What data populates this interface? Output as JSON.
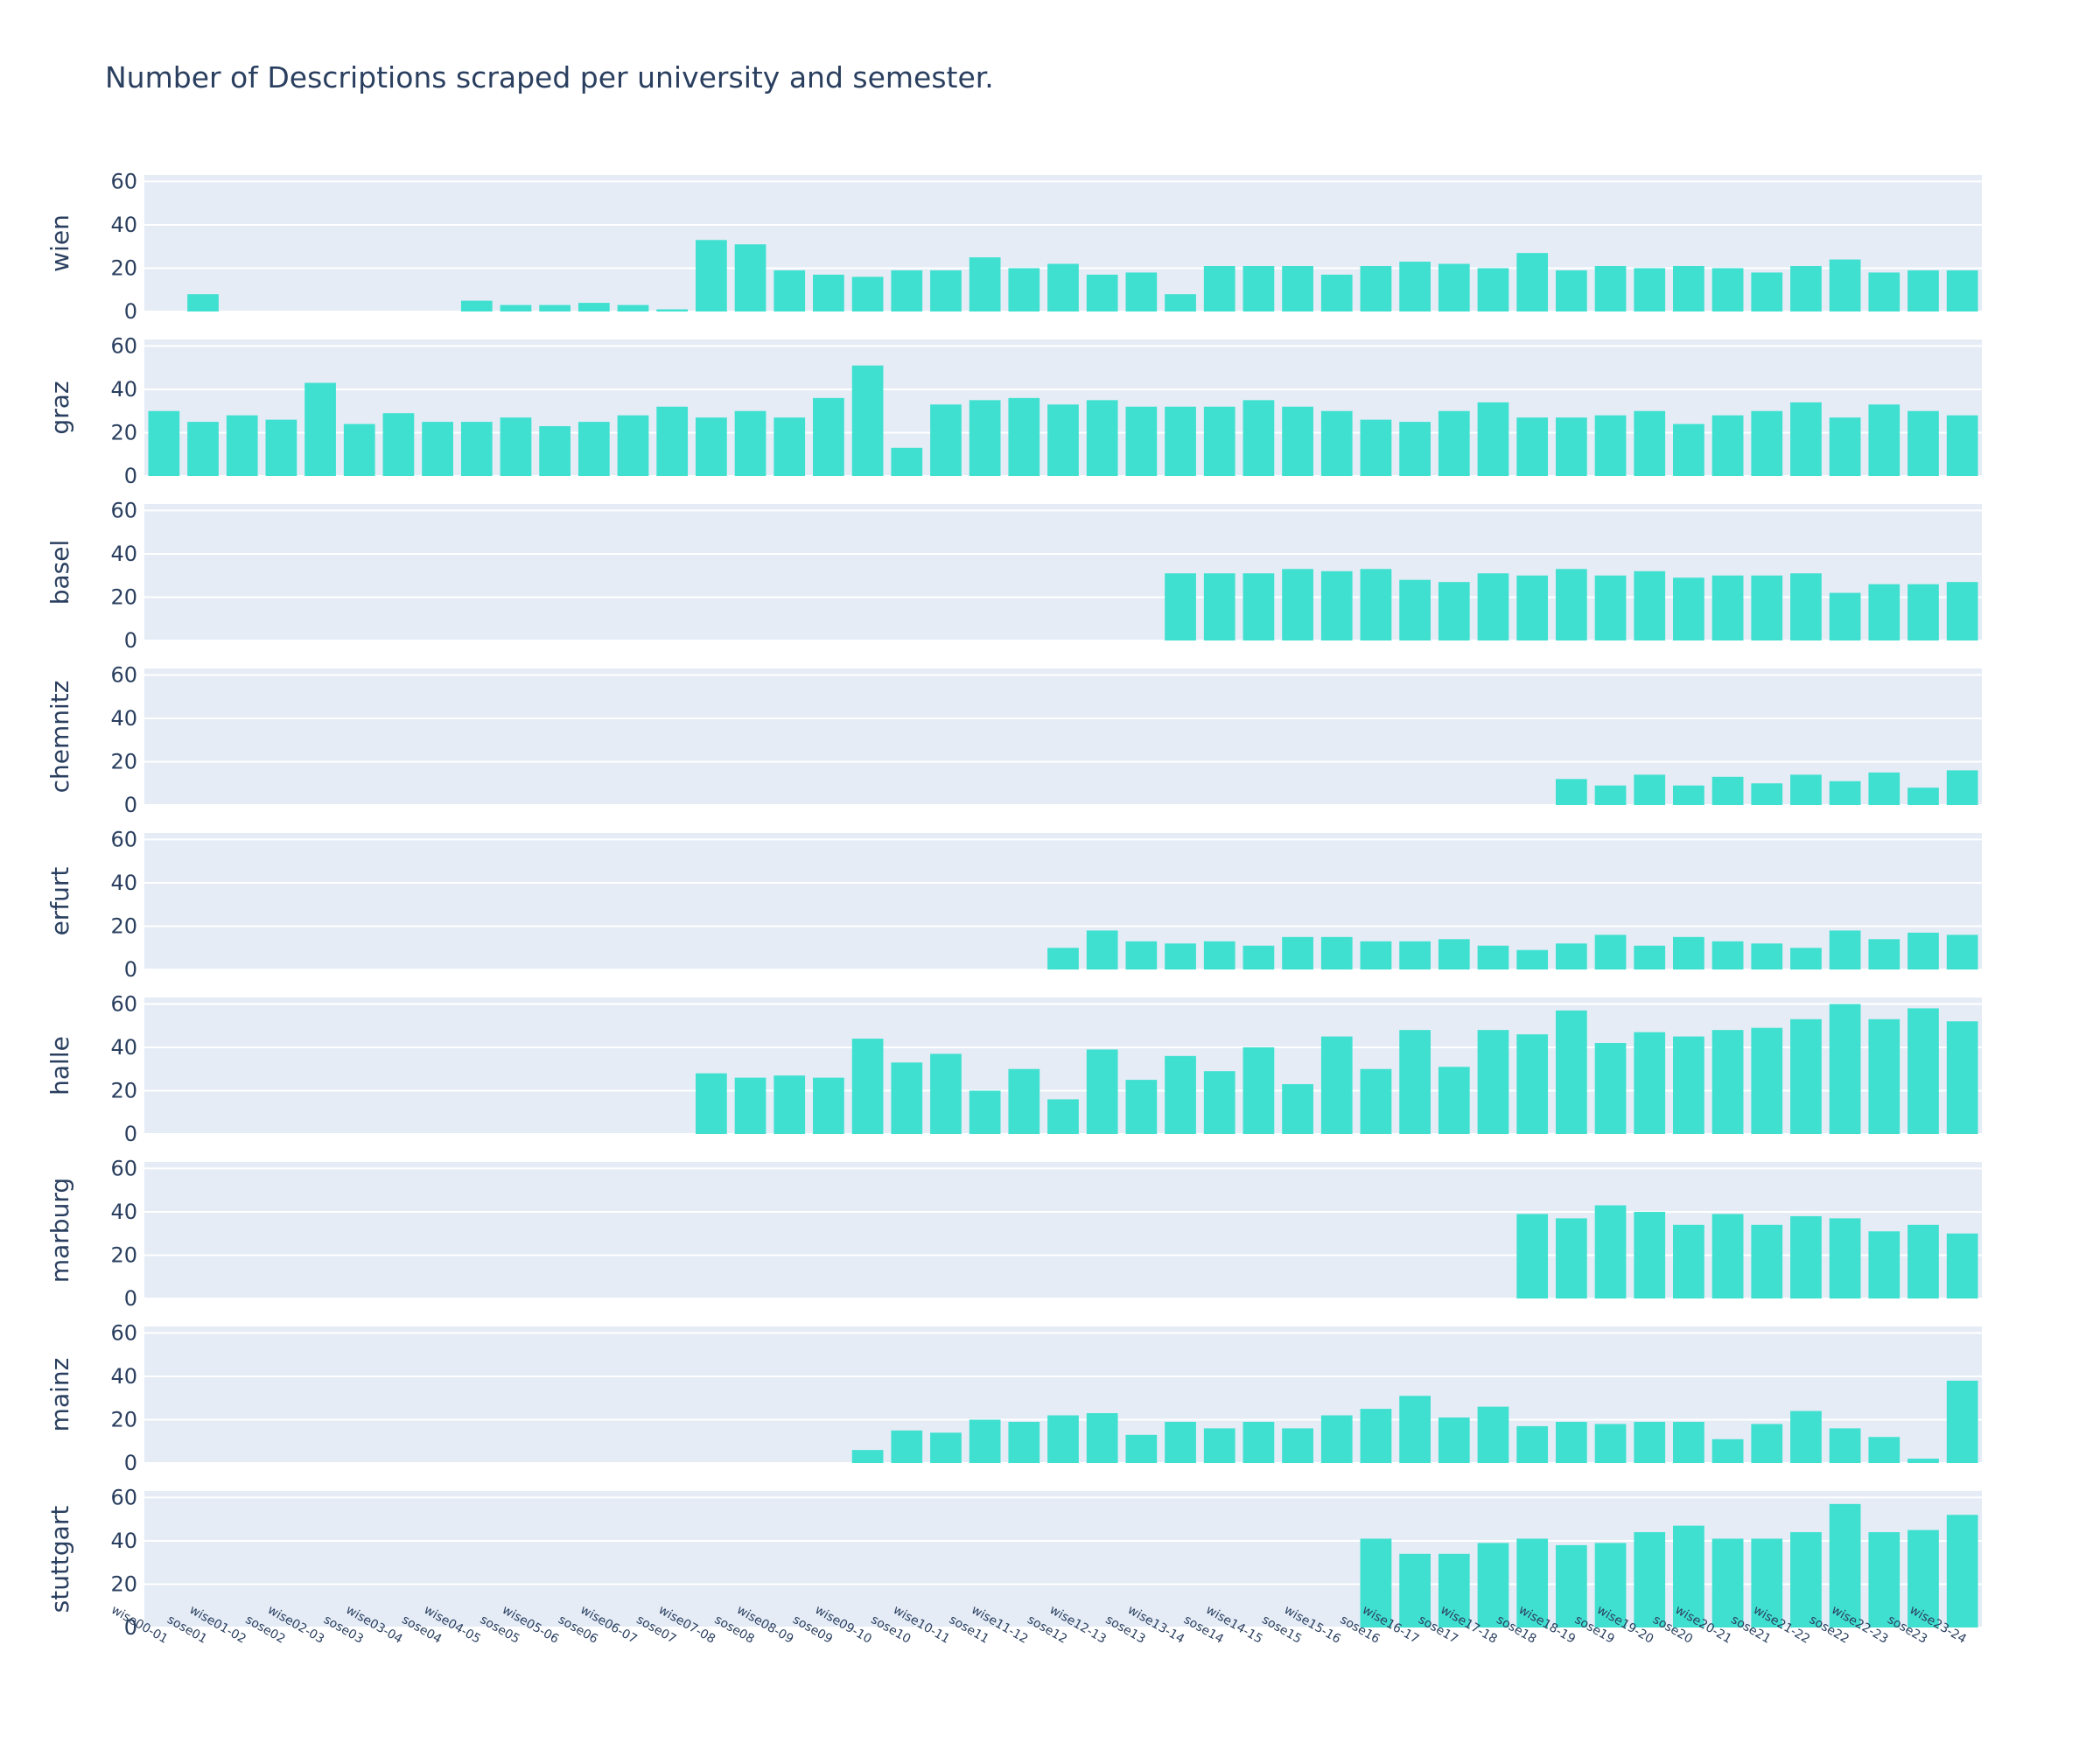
{
  "chart_data": {
    "type": "bar",
    "title": "Number of Descriptions scraped per university and semester.",
    "bar_color": "#40e0d0",
    "plot_bg": "#e5ecf6",
    "grid_color": "#ffffff",
    "text_color": "#2a3f5f",
    "ylim": [
      0,
      63
    ],
    "yticks": [
      0,
      20,
      40,
      60
    ],
    "categories": [
      "wise00-01",
      "sose01",
      "wise01-02",
      "sose02",
      "wise02-03",
      "sose03",
      "wise03-04",
      "sose04",
      "wise04-05",
      "sose05",
      "wise05-06",
      "sose06",
      "wise06-07",
      "sose07",
      "wise07-08",
      "sose08",
      "wise08-09",
      "sose09",
      "wise09-10",
      "sose10",
      "wise10-11",
      "sose11",
      "wise11-12",
      "sose12",
      "wise12-13",
      "sose13",
      "wise13-14",
      "sose14",
      "wise14-15",
      "sose15",
      "wise15-16",
      "sose16",
      "wise16-17",
      "sose17",
      "wise17-18",
      "sose18",
      "wise18-19",
      "sose19",
      "wise19-20",
      "sose20",
      "wise20-21",
      "sose21",
      "wise21-22",
      "sose22",
      "wise22-23",
      "sose23",
      "wise23-24"
    ],
    "series": [
      {
        "name": "wien",
        "values": [
          0,
          8,
          0,
          0,
          0,
          0,
          0,
          0,
          5,
          3,
          3,
          4,
          3,
          1,
          33,
          31,
          19,
          17,
          16,
          19,
          19,
          25,
          20,
          22,
          17,
          18,
          8,
          21,
          21,
          21,
          17,
          21,
          23,
          22,
          20,
          27,
          19,
          21,
          20,
          21,
          20,
          18,
          21,
          24,
          18,
          19,
          19
        ]
      },
      {
        "name": "graz",
        "values": [
          30,
          25,
          28,
          26,
          43,
          24,
          29,
          25,
          25,
          27,
          23,
          25,
          28,
          32,
          27,
          30,
          27,
          36,
          51,
          13,
          33,
          35,
          36,
          33,
          35,
          32,
          32,
          32,
          35,
          32,
          30,
          26,
          25,
          30,
          34,
          27,
          27,
          28,
          30,
          24,
          28,
          30,
          34,
          27,
          33,
          30,
          28
        ]
      },
      {
        "name": "basel",
        "values": [
          0,
          0,
          0,
          0,
          0,
          0,
          0,
          0,
          0,
          0,
          0,
          0,
          0,
          0,
          0,
          0,
          0,
          0,
          0,
          0,
          0,
          0,
          0,
          0,
          0,
          0,
          31,
          31,
          31,
          33,
          32,
          33,
          28,
          27,
          31,
          30,
          33,
          30,
          32,
          29,
          30,
          30,
          31,
          22,
          26,
          26,
          27
        ]
      },
      {
        "name": "chemnitz",
        "values": [
          0,
          0,
          0,
          0,
          0,
          0,
          0,
          0,
          0,
          0,
          0,
          0,
          0,
          0,
          0,
          0,
          0,
          0,
          0,
          0,
          0,
          0,
          0,
          0,
          0,
          0,
          0,
          0,
          0,
          0,
          0,
          0,
          0,
          0,
          0,
          0,
          12,
          9,
          14,
          9,
          13,
          10,
          14,
          11,
          15,
          8,
          16
        ]
      },
      {
        "name": "erfurt",
        "values": [
          0,
          0,
          0,
          0,
          0,
          0,
          0,
          0,
          0,
          0,
          0,
          0,
          0,
          0,
          0,
          0,
          0,
          0,
          0,
          0,
          0,
          0,
          0,
          10,
          18,
          13,
          12,
          13,
          11,
          15,
          15,
          13,
          13,
          14,
          11,
          9,
          12,
          16,
          11,
          15,
          13,
          12,
          10,
          18,
          14,
          17,
          16
        ]
      },
      {
        "name": "halle",
        "values": [
          0,
          0,
          0,
          0,
          0,
          0,
          0,
          0,
          0,
          0,
          0,
          0,
          0,
          0,
          28,
          26,
          27,
          26,
          44,
          33,
          37,
          20,
          30,
          16,
          39,
          25,
          36,
          29,
          40,
          23,
          45,
          30,
          48,
          31,
          48,
          46,
          57,
          42,
          47,
          45,
          48,
          49,
          53,
          60,
          53,
          58,
          52
        ]
      },
      {
        "name": "marburg",
        "values": [
          0,
          0,
          0,
          0,
          0,
          0,
          0,
          0,
          0,
          0,
          0,
          0,
          0,
          0,
          0,
          0,
          0,
          0,
          0,
          0,
          0,
          0,
          0,
          0,
          0,
          0,
          0,
          0,
          0,
          0,
          0,
          0,
          0,
          0,
          0,
          39,
          37,
          43,
          40,
          34,
          39,
          34,
          38,
          37,
          31,
          34,
          30
        ]
      },
      {
        "name": "mainz",
        "values": [
          0,
          0,
          0,
          0,
          0,
          0,
          0,
          0,
          0,
          0,
          0,
          0,
          0,
          0,
          0,
          0,
          0,
          0,
          6,
          15,
          14,
          20,
          19,
          22,
          23,
          13,
          19,
          16,
          19,
          16,
          22,
          25,
          31,
          21,
          26,
          17,
          19,
          18,
          19,
          19,
          11,
          18,
          24,
          16,
          12,
          2,
          38
        ]
      },
      {
        "name": "stuttgart",
        "values": [
          0,
          0,
          0,
          0,
          0,
          0,
          0,
          0,
          0,
          0,
          0,
          0,
          0,
          0,
          0,
          0,
          0,
          0,
          0,
          0,
          0,
          0,
          0,
          0,
          0,
          0,
          0,
          0,
          0,
          0,
          0,
          41,
          34,
          34,
          39,
          41,
          38,
          39,
          44,
          47,
          41,
          41,
          44,
          57,
          44,
          45,
          52
        ]
      }
    ]
  }
}
